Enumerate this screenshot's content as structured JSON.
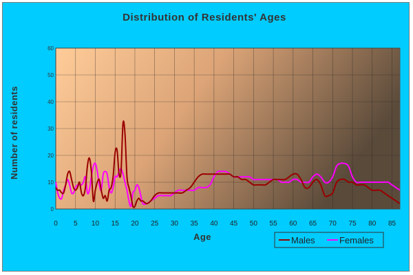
{
  "chart_data": {
    "type": "line",
    "title": "Distribution of Residents' Ages",
    "xlabel": "Age",
    "ylabel": "Number of residents",
    "xlim": [
      0,
      87
    ],
    "ylim": [
      0,
      60
    ],
    "x_ticks": [
      "0",
      "5",
      "10",
      "15",
      "20",
      "25",
      "30",
      "35",
      "40",
      "45",
      "50",
      "55",
      "60",
      "65",
      "70",
      "75",
      "80",
      "85"
    ],
    "y_ticks": [
      "0",
      "10",
      "20",
      "30",
      "40",
      "50",
      "60"
    ],
    "grid": true,
    "legend": "bottom-right",
    "colors": {
      "background": "#00ccff",
      "plot_gradient_start": "#ffcc99",
      "plot_gradient_end": "#5a4a3a",
      "grid": "#222222",
      "males": "#990000",
      "females": "#ff00ff"
    },
    "series": [
      {
        "name": "Males",
        "color": "#990000",
        "points": [
          [
            0,
            8
          ],
          [
            0.5,
            7
          ],
          [
            1,
            7
          ],
          [
            1.5,
            6
          ],
          [
            2,
            6
          ],
          [
            2.5,
            9
          ],
          [
            3,
            13
          ],
          [
            3.5,
            14
          ],
          [
            4,
            11
          ],
          [
            4.5,
            8
          ],
          [
            5,
            7
          ],
          [
            5.5,
            8
          ],
          [
            6,
            10
          ],
          [
            6.5,
            6
          ],
          [
            7,
            5
          ],
          [
            7.5,
            8
          ],
          [
            8,
            16
          ],
          [
            8.5,
            19
          ],
          [
            9,
            14
          ],
          [
            9.5,
            3
          ],
          [
            10,
            7
          ],
          [
            10.5,
            10
          ],
          [
            11,
            11
          ],
          [
            11.5,
            7
          ],
          [
            12,
            4
          ],
          [
            12.5,
            5
          ],
          [
            13,
            3
          ],
          [
            13.5,
            7
          ],
          [
            14,
            8
          ],
          [
            14.5,
            12
          ],
          [
            15,
            21
          ],
          [
            15.5,
            22
          ],
          [
            16,
            13
          ],
          [
            16.5,
            14
          ],
          [
            17,
            32
          ],
          [
            17.5,
            28
          ],
          [
            18,
            12
          ],
          [
            18.5,
            8
          ],
          [
            19,
            5
          ],
          [
            19.5,
            1
          ],
          [
            20,
            1
          ],
          [
            20.5,
            3
          ],
          [
            21,
            4
          ],
          [
            21.5,
            3
          ],
          [
            22,
            3
          ],
          [
            23,
            2
          ],
          [
            24,
            3
          ],
          [
            25,
            5
          ],
          [
            26,
            6
          ],
          [
            27,
            6
          ],
          [
            28,
            6
          ],
          [
            29,
            6
          ],
          [
            30,
            6
          ],
          [
            31,
            6
          ],
          [
            32,
            6
          ],
          [
            33,
            7
          ],
          [
            34,
            8
          ],
          [
            35,
            10
          ],
          [
            36,
            12
          ],
          [
            37,
            13
          ],
          [
            38,
            13
          ],
          [
            39,
            13
          ],
          [
            40,
            13
          ],
          [
            41,
            13
          ],
          [
            42,
            13
          ],
          [
            43,
            13
          ],
          [
            44,
            13
          ],
          [
            45,
            12
          ],
          [
            46,
            12
          ],
          [
            47,
            11
          ],
          [
            48,
            11
          ],
          [
            49,
            10
          ],
          [
            50,
            9
          ],
          [
            51,
            9
          ],
          [
            52,
            9
          ],
          [
            53,
            9
          ],
          [
            54,
            10
          ],
          [
            55,
            11
          ],
          [
            56,
            11
          ],
          [
            57,
            11
          ],
          [
            58,
            11
          ],
          [
            59,
            12
          ],
          [
            60,
            13
          ],
          [
            61,
            13
          ],
          [
            62,
            11
          ],
          [
            63,
            8
          ],
          [
            64,
            8
          ],
          [
            65,
            10
          ],
          [
            66,
            11
          ],
          [
            67,
            9
          ],
          [
            68,
            5
          ],
          [
            69,
            5
          ],
          [
            70,
            6
          ],
          [
            71,
            10
          ],
          [
            72,
            11
          ],
          [
            73,
            11
          ],
          [
            74,
            10
          ],
          [
            75,
            10
          ],
          [
            76,
            9
          ],
          [
            77,
            9
          ],
          [
            78,
            9
          ],
          [
            79,
            8
          ],
          [
            80,
            7
          ],
          [
            81,
            7
          ],
          [
            82,
            7
          ],
          [
            83,
            6
          ],
          [
            84,
            5
          ],
          [
            85,
            4
          ],
          [
            86,
            3
          ],
          [
            87,
            2
          ]
        ]
      },
      {
        "name": "Females",
        "color": "#ff00ff",
        "points": [
          [
            0,
            10
          ],
          [
            0.5,
            6
          ],
          [
            1,
            4
          ],
          [
            1.5,
            4
          ],
          [
            2,
            7
          ],
          [
            2.5,
            9
          ],
          [
            3,
            11
          ],
          [
            3.5,
            9
          ],
          [
            4,
            6
          ],
          [
            4.5,
            6
          ],
          [
            5,
            8
          ],
          [
            5.5,
            9
          ],
          [
            6,
            9
          ],
          [
            6.5,
            9
          ],
          [
            7,
            10
          ],
          [
            7.5,
            12
          ],
          [
            8,
            6
          ],
          [
            8.5,
            7
          ],
          [
            9,
            12
          ],
          [
            9.5,
            16
          ],
          [
            10,
            17
          ],
          [
            10.5,
            14
          ],
          [
            11,
            9
          ],
          [
            11.5,
            7
          ],
          [
            12,
            13
          ],
          [
            12.5,
            14
          ],
          [
            13,
            13
          ],
          [
            13.5,
            8
          ],
          [
            14,
            6
          ],
          [
            14.5,
            8
          ],
          [
            15,
            12
          ],
          [
            15.5,
            12
          ],
          [
            16,
            14
          ],
          [
            16.5,
            15
          ],
          [
            17,
            13
          ],
          [
            17.5,
            10
          ],
          [
            18,
            7
          ],
          [
            18.5,
            3
          ],
          [
            19,
            1
          ],
          [
            19.5,
            6
          ],
          [
            20,
            7
          ],
          [
            20.5,
            9
          ],
          [
            21,
            8
          ],
          [
            21.5,
            5
          ],
          [
            22,
            2
          ],
          [
            23,
            2
          ],
          [
            24,
            3
          ],
          [
            25,
            4
          ],
          [
            26,
            5
          ],
          [
            27,
            5
          ],
          [
            28,
            5
          ],
          [
            29,
            5
          ],
          [
            30,
            6
          ],
          [
            31,
            7
          ],
          [
            32,
            7
          ],
          [
            33,
            7
          ],
          [
            34,
            7
          ],
          [
            35,
            7
          ],
          [
            36,
            8
          ],
          [
            37,
            8
          ],
          [
            38,
            8
          ],
          [
            39,
            9
          ],
          [
            40,
            12
          ],
          [
            41,
            14
          ],
          [
            42,
            14
          ],
          [
            43,
            14
          ],
          [
            44,
            13
          ],
          [
            45,
            12
          ],
          [
            46,
            12
          ],
          [
            47,
            12
          ],
          [
            48,
            12
          ],
          [
            49,
            12
          ],
          [
            50,
            11
          ],
          [
            51,
            11
          ],
          [
            52,
            11
          ],
          [
            53,
            11
          ],
          [
            54,
            11
          ],
          [
            55,
            11
          ],
          [
            56,
            11
          ],
          [
            57,
            10
          ],
          [
            58,
            10
          ],
          [
            59,
            10
          ],
          [
            60,
            11
          ],
          [
            61,
            11
          ],
          [
            62,
            10
          ],
          [
            63,
            10
          ],
          [
            64,
            10
          ],
          [
            65,
            12
          ],
          [
            66,
            13
          ],
          [
            67,
            12
          ],
          [
            68,
            10
          ],
          [
            69,
            10
          ],
          [
            70,
            12
          ],
          [
            71,
            16
          ],
          [
            72,
            17
          ],
          [
            73,
            17
          ],
          [
            74,
            16
          ],
          [
            75,
            12
          ],
          [
            76,
            10
          ],
          [
            77,
            10
          ],
          [
            78,
            10
          ],
          [
            79,
            10
          ],
          [
            80,
            10
          ],
          [
            81,
            10
          ],
          [
            82,
            10
          ],
          [
            83,
            10
          ],
          [
            84,
            10
          ],
          [
            85,
            9
          ],
          [
            86,
            8
          ],
          [
            87,
            7
          ]
        ]
      }
    ]
  }
}
